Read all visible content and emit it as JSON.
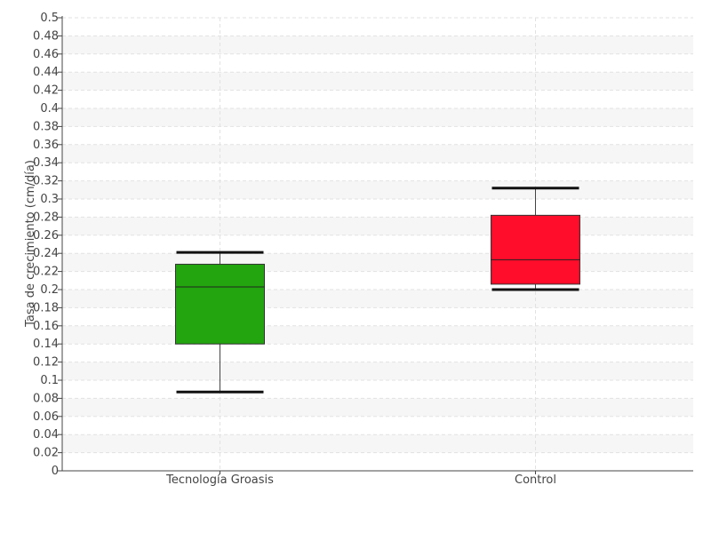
{
  "chart_data": {
    "type": "box",
    "title": "",
    "xlabel": "",
    "ylabel": "Tasa de crecimiento (cm/día)",
    "ylim": [
      0,
      0.5
    ],
    "ytick_step": 0.02,
    "grid": true,
    "categories": [
      "Tecnología Groasis",
      "Control"
    ],
    "boxes": [
      {
        "category": "Tecnología Groasis",
        "whisker_low": 0.087,
        "q1": 0.14,
        "median": 0.203,
        "q3": 0.228,
        "whisker_high": 0.241,
        "color": "#22a50f"
      },
      {
        "category": "Control",
        "whisker_low": 0.2,
        "q1": 0.206,
        "median": 0.233,
        "q3": 0.282,
        "whisker_high": 0.312,
        "color": "#ff0d2a"
      }
    ]
  }
}
